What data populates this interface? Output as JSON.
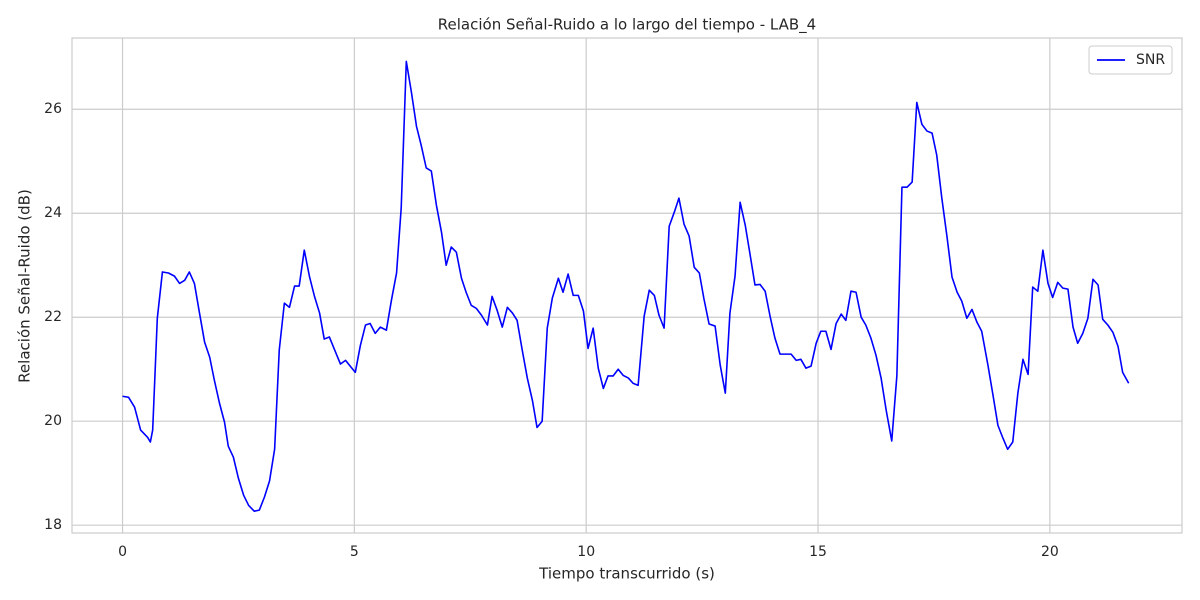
{
  "chart_data": {
    "type": "line",
    "title": "Relación Señal-Ruido a lo largo del tiempo - LAB_4",
    "x_label": "Tiempo transcurrido (s)",
    "y_label": "Relación Señal-Ruido (dB)",
    "x": [
      0,
      0.13,
      0.26,
      0.39,
      0.54,
      0.6,
      0.65,
      0.75,
      0.86,
      0.99,
      1.12,
      1.23,
      1.34,
      1.44,
      1.55,
      1.66,
      1.77,
      1.88,
      1.98,
      2.09,
      2.2,
      2.28,
      2.39,
      2.5,
      2.61,
      2.72,
      2.84,
      2.95,
      3.06,
      3.17,
      3.28,
      3.38,
      3.49,
      3.6,
      3.71,
      3.81,
      3.92,
      4.03,
      4.14,
      4.25,
      4.35,
      4.46,
      4.57,
      4.7,
      4.81,
      4.91,
      5.02,
      5.13,
      5.24,
      5.34,
      5.45,
      5.56,
      5.69,
      5.8,
      5.91,
      6.01,
      6.12,
      6.23,
      6.34,
      6.44,
      6.55,
      6.66,
      6.77,
      6.88,
      6.98,
      7.09,
      7.2,
      7.31,
      7.41,
      7.52,
      7.63,
      7.74,
      7.87,
      7.97,
      8.08,
      8.19,
      8.3,
      8.41,
      8.51,
      8.62,
      8.73,
      8.84,
      8.94,
      9.05,
      9.16,
      9.27,
      9.4,
      9.5,
      9.61,
      9.72,
      9.83,
      9.94,
      10.04,
      10.15,
      10.26,
      10.37,
      10.47,
      10.58,
      10.69,
      10.8,
      10.91,
      11.01,
      11.12,
      11.25,
      11.36,
      11.47,
      11.57,
      11.68,
      11.79,
      11.9,
      12.0,
      12.11,
      12.22,
      12.33,
      12.44,
      12.54,
      12.65,
      12.78,
      12.89,
      13.0,
      13.1,
      13.21,
      13.32,
      13.43,
      13.53,
      13.64,
      13.75,
      13.86,
      13.97,
      14.07,
      14.18,
      14.31,
      14.42,
      14.53,
      14.63,
      14.74,
      14.85,
      14.96,
      15.06,
      15.17,
      15.28,
      15.39,
      15.5,
      15.6,
      15.71,
      15.82,
      15.93,
      16.03,
      16.14,
      16.25,
      16.36,
      16.47,
      16.59,
      16.7,
      16.81,
      16.92,
      17.03,
      17.13,
      17.24,
      17.35,
      17.46,
      17.56,
      17.67,
      17.78,
      17.89,
      18.0,
      18.1,
      18.21,
      18.32,
      18.43,
      18.53,
      18.66,
      18.77,
      18.88,
      18.99,
      19.09,
      19.2,
      19.31,
      19.42,
      19.53,
      19.63,
      19.74,
      19.85,
      19.96,
      20.06,
      20.17,
      20.28,
      20.39,
      20.5,
      20.6,
      20.71,
      20.82,
      20.93,
      21.04,
      21.14,
      21.25,
      21.36,
      21.47,
      21.57,
      21.7
    ],
    "series": [
      {
        "name": "SNR",
        "color": "blue",
        "values": [
          20.48,
          20.46,
          20.27,
          19.83,
          19.69,
          19.6,
          19.83,
          21.98,
          22.87,
          22.85,
          22.79,
          22.65,
          22.71,
          22.87,
          22.65,
          22.08,
          21.52,
          21.23,
          20.79,
          20.35,
          19.98,
          19.52,
          19.31,
          18.9,
          18.58,
          18.38,
          18.27,
          18.29,
          18.54,
          18.85,
          19.46,
          21.37,
          22.27,
          22.19,
          22.6,
          22.6,
          23.29,
          22.79,
          22.4,
          22.08,
          21.58,
          21.62,
          21.38,
          21.1,
          21.17,
          21.06,
          20.94,
          21.46,
          21.85,
          21.88,
          21.69,
          21.81,
          21.75,
          22.33,
          22.85,
          24.1,
          26.92,
          26.33,
          25.67,
          25.31,
          24.87,
          24.81,
          24.15,
          23.63,
          23.0,
          23.35,
          23.25,
          22.75,
          22.48,
          22.23,
          22.17,
          22.04,
          21.85,
          22.4,
          22.13,
          21.81,
          22.19,
          22.08,
          21.94,
          21.37,
          20.83,
          20.4,
          19.88,
          20.0,
          21.79,
          22.37,
          22.75,
          22.48,
          22.83,
          22.42,
          22.42,
          22.12,
          21.4,
          21.79,
          21.02,
          20.63,
          20.87,
          20.87,
          21.0,
          20.88,
          20.83,
          20.73,
          20.69,
          22.02,
          22.52,
          22.42,
          22.04,
          21.79,
          23.75,
          24.02,
          24.29,
          23.79,
          23.56,
          22.96,
          22.85,
          22.35,
          21.87,
          21.83,
          21.08,
          20.54,
          22.08,
          22.79,
          24.21,
          23.77,
          23.23,
          22.62,
          22.63,
          22.5,
          22.0,
          21.6,
          21.29,
          21.29,
          21.29,
          21.17,
          21.19,
          21.02,
          21.06,
          21.5,
          21.73,
          21.73,
          21.38,
          21.88,
          22.06,
          21.94,
          22.5,
          22.48,
          22.0,
          21.85,
          21.6,
          21.27,
          20.83,
          20.21,
          19.62,
          20.87,
          24.5,
          24.5,
          24.6,
          26.13,
          25.71,
          25.58,
          25.54,
          25.12,
          24.29,
          23.56,
          22.77,
          22.48,
          22.31,
          21.98,
          22.15,
          21.9,
          21.73,
          21.1,
          20.52,
          19.92,
          19.67,
          19.46,
          19.6,
          20.54,
          21.19,
          20.9,
          22.58,
          22.5,
          23.29,
          22.65,
          22.38,
          22.67,
          22.56,
          22.54,
          21.81,
          21.5,
          21.69,
          21.98,
          22.73,
          22.62,
          21.96,
          21.85,
          21.71,
          21.44,
          20.94,
          20.73
        ]
      }
    ],
    "xlim": [
      -1.09,
      22.85
    ],
    "ylim": [
      17.85,
      27.37
    ],
    "xticks": [
      0,
      5,
      10,
      15,
      20
    ],
    "yticks": [
      18,
      20,
      22,
      24,
      26
    ],
    "grid": true,
    "legend": "upper right"
  }
}
